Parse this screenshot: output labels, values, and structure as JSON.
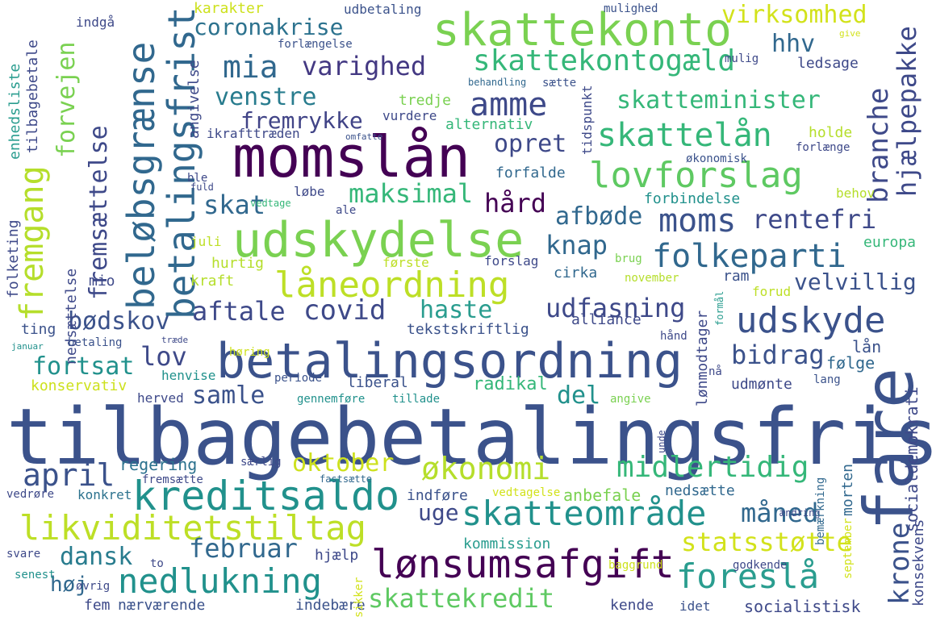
{
  "words": [
    {
      "text": "tilbagebetalingsfrist",
      "color": "#3b528b"
    },
    {
      "text": "betalingsordning",
      "color": "#3b528b"
    },
    {
      "text": "momslån",
      "color": "#440154"
    },
    {
      "text": "udskydelse",
      "color": "#7ad151"
    },
    {
      "text": "fare",
      "color": "#3b528b"
    },
    {
      "text": "skattekonto",
      "color": "#7ad151"
    },
    {
      "text": "kreditsaldo",
      "color": "#21918c"
    },
    {
      "text": "lønsumsafgift",
      "color": "#440154"
    },
    {
      "text": "låneordning",
      "color": "#bddf26"
    },
    {
      "text": "likviditetstiltag",
      "color": "#bddf26"
    },
    {
      "text": "lovforslag",
      "color": "#5ec962"
    },
    {
      "text": "beløbsgrænse",
      "color": "#31688e"
    },
    {
      "text": "betalingsfrist",
      "color": "#31688e"
    },
    {
      "text": "udskyde",
      "color": "#3b528b"
    },
    {
      "text": "skatteområde",
      "color": "#21918c"
    },
    {
      "text": "nedlukning",
      "color": "#21918c"
    },
    {
      "text": "foreslå",
      "color": "#2a9d8f"
    },
    {
      "text": "skattelån",
      "color": "#35b779"
    },
    {
      "text": "moms",
      "color": "#3b528b"
    },
    {
      "text": "folkeparti",
      "color": "#31688e"
    },
    {
      "text": "skattekontogæld",
      "color": "#35b779"
    },
    {
      "text": "amme",
      "color": "#3e4989"
    },
    {
      "text": "mia",
      "color": "#31688e"
    },
    {
      "text": "varighed",
      "color": "#443983"
    },
    {
      "text": "coronakrise",
      "color": "#2c728e"
    },
    {
      "text": "virksomhed",
      "color": "#d2e21b"
    },
    {
      "text": "hhv",
      "color": "#31688e"
    },
    {
      "text": "hjælpepakke",
      "color": "#3e4989"
    },
    {
      "text": "branche",
      "color": "#3e4989"
    },
    {
      "text": "fremgang",
      "color": "#b5de2b"
    },
    {
      "text": "forvejen",
      "color": "#7ad151"
    },
    {
      "text": "fremsættelse",
      "color": "#3e4989"
    },
    {
      "text": "midlertidig",
      "color": "#35b779"
    },
    {
      "text": "økonomi",
      "color": "#b5de2b"
    },
    {
      "text": "april",
      "color": "#3b528b"
    },
    {
      "text": "covid",
      "color": "#3e4989"
    },
    {
      "text": "oktober",
      "color": "#cde11d"
    },
    {
      "text": "statsstøtte",
      "color": "#d2e21b"
    },
    {
      "text": "krone",
      "color": "#3b528b"
    },
    {
      "text": "skattekredit",
      "color": "#5ec962"
    },
    {
      "text": "februar",
      "color": "#31688e"
    },
    {
      "text": "måned",
      "color": "#31688e"
    },
    {
      "text": "venstre",
      "color": "#287c8e"
    },
    {
      "text": "fremrykke",
      "color": "#414487"
    },
    {
      "text": "skatteminister",
      "color": "#35b779"
    },
    {
      "text": "opret",
      "color": "#3e4989"
    },
    {
      "text": "maksimal",
      "color": "#35b779"
    },
    {
      "text": "skat",
      "color": "#31688e"
    },
    {
      "text": "hård",
      "color": "#440154"
    },
    {
      "text": "afbøde",
      "color": "#31688e"
    },
    {
      "text": "knap",
      "color": "#31688e"
    },
    {
      "text": "rentefri",
      "color": "#3e4989"
    },
    {
      "text": "aftale",
      "color": "#3e4989"
    },
    {
      "text": "haste",
      "color": "#2a9d8f"
    },
    {
      "text": "udfasning",
      "color": "#3e4989"
    },
    {
      "text": "velvillig",
      "color": "#3b528b"
    },
    {
      "text": "bødskov",
      "color": "#3b528b"
    },
    {
      "text": "lov",
      "color": "#3e4989"
    },
    {
      "text": "bidrag",
      "color": "#3b528b"
    },
    {
      "text": "fortsat",
      "color": "#21918c"
    },
    {
      "text": "samle",
      "color": "#3b528b"
    },
    {
      "text": "del",
      "color": "#21918c"
    },
    {
      "text": "dansk",
      "color": "#287c8e"
    },
    {
      "text": "høj",
      "color": "#31688e"
    },
    {
      "text": "uge",
      "color": "#3e4989"
    },
    {
      "text": "tekstskriftlig",
      "color": "#3b528b"
    },
    {
      "text": "liberal",
      "color": "#3b528b"
    },
    {
      "text": "radikal",
      "color": "#35b779"
    },
    {
      "text": "konservativ",
      "color": "#cde11d"
    },
    {
      "text": "regering",
      "color": "#2c728e"
    },
    {
      "text": "konkret",
      "color": "#2c728e"
    },
    {
      "text": "indføre",
      "color": "#3b528b"
    },
    {
      "text": "anbefale",
      "color": "#7ad151"
    },
    {
      "text": "nedsætte",
      "color": "#31688e"
    },
    {
      "text": "kommission",
      "color": "#2a9d8f"
    },
    {
      "text": "hjælp",
      "color": "#3e4989"
    },
    {
      "text": "nærværende",
      "color": "#3b528b"
    },
    {
      "text": "indebære",
      "color": "#3b528b"
    },
    {
      "text": "fem",
      "color": "#3e4989"
    },
    {
      "text": "kende",
      "color": "#3e4989"
    },
    {
      "text": "idet",
      "color": "#3b528b"
    },
    {
      "text": "socialistisk",
      "color": "#3e4989"
    },
    {
      "text": "lån",
      "color": "#3b528b"
    },
    {
      "text": "følge",
      "color": "#31688e"
    },
    {
      "text": "udmønte",
      "color": "#3e4989"
    },
    {
      "text": "lang",
      "color": "#3b528b"
    },
    {
      "text": "socialdemokrati",
      "color": "#3e4989"
    },
    {
      "text": "konsekvens",
      "color": "#3e4989"
    },
    {
      "text": "morten",
      "color": "#31688e"
    },
    {
      "text": "lønmodtager",
      "color": "#3e4989"
    },
    {
      "text": "alliance",
      "color": "#3e4989"
    },
    {
      "text": "cirka",
      "color": "#31688e"
    },
    {
      "text": "ram",
      "color": "#3b528b"
    },
    {
      "text": "forud",
      "color": "#bddf26"
    },
    {
      "text": "november",
      "color": "#b5de2b"
    },
    {
      "text": "europa",
      "color": "#35b779"
    },
    {
      "text": "behov",
      "color": "#b5de2b"
    },
    {
      "text": "forbindelse",
      "color": "#21918c"
    },
    {
      "text": "forfalde",
      "color": "#31688e"
    },
    {
      "text": "holde",
      "color": "#b5de2b"
    },
    {
      "text": "forlænge",
      "color": "#3e4989"
    },
    {
      "text": "økonomisk",
      "color": "#3b528b"
    },
    {
      "text": "alternativ",
      "color": "#35b779"
    },
    {
      "text": "vurdere",
      "color": "#3e4989"
    },
    {
      "text": "tredje",
      "color": "#7ad151"
    },
    {
      "text": "ikrafttræden",
      "color": "#3e4989"
    },
    {
      "text": "omfatte",
      "color": "#3b528b"
    },
    {
      "text": "tidspunkt",
      "color": "#3e4989"
    },
    {
      "text": "ledsage",
      "color": "#3e4989"
    },
    {
      "text": "mulig",
      "color": "#3e4989"
    },
    {
      "text": "give",
      "color": "#d2e21b"
    },
    {
      "text": "mulighed",
      "color": "#3b528b"
    },
    {
      "text": "udbetaling",
      "color": "#3b528b"
    },
    {
      "text": "karakter",
      "color": "#cde11d"
    },
    {
      "text": "forlængelse",
      "color": "#3b528b"
    },
    {
      "text": "indgå",
      "color": "#3e4989"
    },
    {
      "text": "tilbagebetale",
      "color": "#3e4989"
    },
    {
      "text": "enhedsliste",
      "color": "#2a9d8f"
    },
    {
      "text": "angivelse",
      "color": "#3e4989"
    },
    {
      "text": "behandling",
      "color": "#31688e"
    },
    {
      "text": "sætte",
      "color": "#3b528b"
    },
    {
      "text": "folketing",
      "color": "#3e4989"
    },
    {
      "text": "nedsættelse",
      "color": "#3e4989"
    },
    {
      "text": "mio",
      "color": "#3e4989"
    },
    {
      "text": "ting",
      "color": "#3b528b"
    },
    {
      "text": "januar",
      "color": "#21918c"
    },
    {
      "text": "betaling",
      "color": "#3b528b"
    },
    {
      "text": "træde",
      "color": "#3e4989"
    },
    {
      "text": "vedrøre",
      "color": "#3e4989"
    },
    {
      "text": "svare",
      "color": "#3e4989"
    },
    {
      "text": "senest",
      "color": "#21918c"
    },
    {
      "text": "øvrig",
      "color": "#3e4989"
    },
    {
      "text": "to",
      "color": "#3e4989"
    },
    {
      "text": "ble",
      "color": "#3e4989"
    },
    {
      "text": "fuld",
      "color": "#3e4989"
    },
    {
      "text": "vedtage",
      "color": "#35b779"
    },
    {
      "text": "ale",
      "color": "#3e4989"
    },
    {
      "text": "løbe",
      "color": "#3e4989"
    },
    {
      "text": "juli",
      "color": "#bddf26"
    },
    {
      "text": "første",
      "color": "#bddf26"
    },
    {
      "text": "forslag",
      "color": "#3e4989"
    },
    {
      "text": "hurtig",
      "color": "#b5de2b"
    },
    {
      "text": "kraft",
      "color": "#b5de2b"
    },
    {
      "text": "brug",
      "color": "#7ad151"
    },
    {
      "text": "høring",
      "color": "#cde11d"
    },
    {
      "text": "henvise",
      "color": "#21918c"
    },
    {
      "text": "periode",
      "color": "#3b528b"
    },
    {
      "text": "herved",
      "color": "#3e4989"
    },
    {
      "text": "gennemføre",
      "color": "#21918c"
    },
    {
      "text": "tillade",
      "color": "#21918c"
    },
    {
      "text": "angive",
      "color": "#7ad151"
    },
    {
      "text": "særlig",
      "color": "#3e4989"
    },
    {
      "text": "fremsætte",
      "color": "#3e4989"
    },
    {
      "text": "fastsætte",
      "color": "#31688e"
    },
    {
      "text": "vedtagelse",
      "color": "#d2e21b"
    },
    {
      "text": "ændring",
      "color": "#3e4989"
    },
    {
      "text": "baggrund",
      "color": "#cde11d"
    },
    {
      "text": "godkende",
      "color": "#3e4989"
    },
    {
      "text": "sikker",
      "color": "#d2e21b"
    },
    {
      "text": "bemærkning",
      "color": "#31688e"
    },
    {
      "text": "unde",
      "color": "#3e4989"
    },
    {
      "text": "september",
      "color": "#d2e21b"
    },
    {
      "text": "formål",
      "color": "#2a9d8f"
    },
    {
      "text": "hånd",
      "color": "#3e4989"
    },
    {
      "text": "nå",
      "color": "#3e4989"
    }
  ]
}
